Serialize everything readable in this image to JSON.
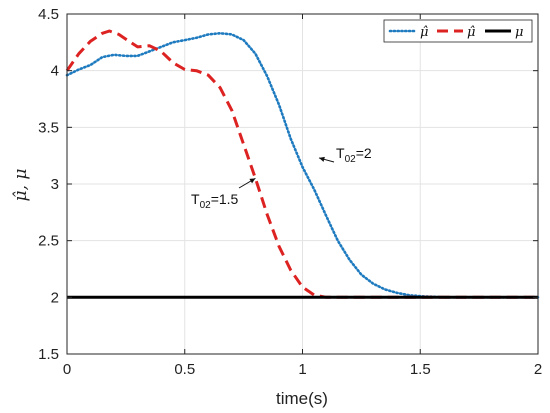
{
  "chart_data": {
    "type": "line",
    "xlabel": "time(s)",
    "ylabel": "μ̂, μ",
    "xlim": [
      0,
      2
    ],
    "ylim": [
      1.5,
      4.5
    ],
    "x_ticks": [
      "0",
      "0.5",
      "1",
      "1.5",
      "2"
    ],
    "y_ticks": [
      "1.5",
      "2",
      "2.5",
      "3",
      "3.5",
      "4",
      "4.5"
    ],
    "grid": true,
    "legend_position": "top-right",
    "series": [
      {
        "name": "μ̂",
        "style": "dotted",
        "color": "#1f7bbf",
        "points": [
          [
            0,
            3.96
          ],
          [
            0.05,
            4.01
          ],
          [
            0.1,
            4.05
          ],
          [
            0.15,
            4.12
          ],
          [
            0.2,
            4.14
          ],
          [
            0.25,
            4.13
          ],
          [
            0.3,
            4.13
          ],
          [
            0.35,
            4.17
          ],
          [
            0.4,
            4.21
          ],
          [
            0.45,
            4.25
          ],
          [
            0.5,
            4.27
          ],
          [
            0.55,
            4.29
          ],
          [
            0.6,
            4.32
          ],
          [
            0.65,
            4.33
          ],
          [
            0.7,
            4.32
          ],
          [
            0.75,
            4.27
          ],
          [
            0.8,
            4.15
          ],
          [
            0.85,
            3.95
          ],
          [
            0.9,
            3.7
          ],
          [
            0.95,
            3.4
          ],
          [
            1.0,
            3.15
          ],
          [
            1.05,
            2.95
          ],
          [
            1.1,
            2.72
          ],
          [
            1.15,
            2.5
          ],
          [
            1.2,
            2.33
          ],
          [
            1.25,
            2.2
          ],
          [
            1.3,
            2.12
          ],
          [
            1.35,
            2.07
          ],
          [
            1.4,
            2.04
          ],
          [
            1.45,
            2.02
          ],
          [
            1.5,
            2.01
          ],
          [
            1.6,
            2.0
          ],
          [
            2.0,
            2.0
          ]
        ]
      },
      {
        "name": "μ̂",
        "style": "dashed",
        "color": "#dd2222",
        "points": [
          [
            0,
            4.0
          ],
          [
            0.05,
            4.15
          ],
          [
            0.1,
            4.26
          ],
          [
            0.15,
            4.33
          ],
          [
            0.18,
            4.35
          ],
          [
            0.22,
            4.32
          ],
          [
            0.27,
            4.25
          ],
          [
            0.3,
            4.21
          ],
          [
            0.35,
            4.22
          ],
          [
            0.4,
            4.17
          ],
          [
            0.45,
            4.07
          ],
          [
            0.5,
            4.01
          ],
          [
            0.55,
            4.0
          ],
          [
            0.6,
            3.96
          ],
          [
            0.65,
            3.85
          ],
          [
            0.7,
            3.65
          ],
          [
            0.75,
            3.35
          ],
          [
            0.8,
            3.05
          ],
          [
            0.85,
            2.73
          ],
          [
            0.9,
            2.45
          ],
          [
            0.95,
            2.24
          ],
          [
            1.0,
            2.09
          ],
          [
            1.05,
            2.02
          ],
          [
            1.1,
            2.0
          ],
          [
            2.0,
            2.0
          ]
        ]
      },
      {
        "name": "μ",
        "style": "solid",
        "color": "#000000",
        "points": [
          [
            0,
            2.0
          ],
          [
            2.0,
            2.0
          ]
        ]
      }
    ],
    "annotations": [
      {
        "base": "T",
        "sub": "02",
        "rest": "=2",
        "arrow_to": [
          1.07,
          3.23
        ]
      },
      {
        "base": "T",
        "sub": "02",
        "rest": "=1.5",
        "arrow_to": [
          0.8,
          3.05
        ]
      }
    ]
  }
}
